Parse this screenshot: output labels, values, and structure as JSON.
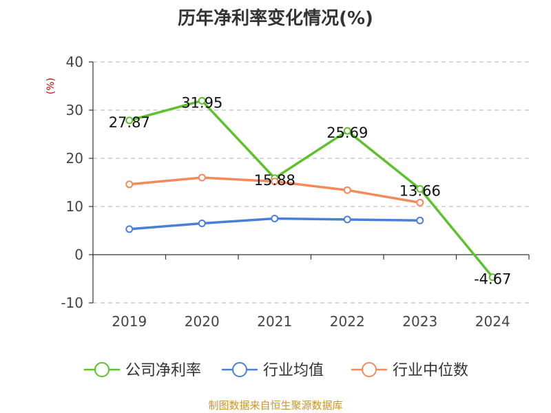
{
  "title": "历年净利率变化情况(%)",
  "source": "制图数据来自恒生聚源数据库",
  "chart_data": {
    "type": "line",
    "title": "历年净利率变化情况(%)",
    "ylabel": "(%)",
    "x": [
      "2019",
      "2020",
      "2021",
      "2022",
      "2023",
      "2024"
    ],
    "ylim": [
      -10,
      40
    ],
    "yticks": [
      -10,
      0,
      10,
      20,
      30,
      40
    ],
    "grid": true,
    "legend_position": "bottom",
    "series": [
      {
        "name": "公司净利率",
        "color": "#5cc12a",
        "values": [
          27.87,
          31.95,
          15.88,
          25.69,
          13.66,
          -4.67
        ],
        "labels": [
          "27.87",
          "31.95",
          "15.88",
          "25.69",
          "13.66",
          "-4.67"
        ]
      },
      {
        "name": "行业均值",
        "color": "#4a7fd6",
        "values": [
          5.3,
          6.5,
          7.5,
          7.3,
          7.1,
          null
        ]
      },
      {
        "name": "行业中位数",
        "color": "#f4895a",
        "values": [
          14.6,
          16.0,
          15.2,
          13.4,
          10.8,
          null
        ]
      }
    ]
  }
}
